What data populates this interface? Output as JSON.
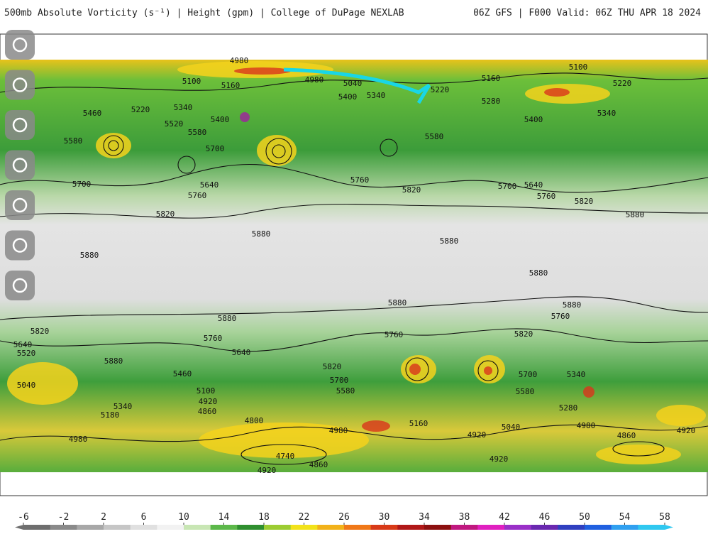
{
  "header": {
    "title": "500mb Absolute Vorticity (s⁻¹) | Height (gpm) | College of DuPage NEXLAB",
    "valid": "06Z GFS | F000 Valid: 06Z THU APR 18 2024"
  },
  "map": {
    "contour_labels": [
      4980,
      5100,
      5160,
      4980,
      5040,
      5400,
      5340,
      5220,
      5160,
      5100,
      5220,
      5280,
      5460,
      5220,
      5340,
      5400,
      5520,
      5580,
      5580,
      5700,
      5400,
      5340,
      5580,
      5640,
      5760,
      5700,
      5760,
      5820,
      5700,
      5640,
      5760,
      5820,
      5880,
      5820,
      5880,
      5880,
      5880,
      5880,
      5880,
      5880,
      5880,
      5760,
      5820,
      5760,
      5640,
      5760,
      5820,
      5880,
      5820,
      5700,
      5580,
      5700,
      5580,
      5640,
      5520,
      5460,
      5100,
      4920,
      4860,
      5340,
      5180,
      5040,
      4980,
      4800,
      4980,
      5160,
      4920,
      5040,
      4980,
      4860,
      4920,
      4740,
      4860,
      4920,
      4920,
      5280,
      5340
    ]
  },
  "colorbar": {
    "ticks": [
      -6,
      -2,
      2,
      6,
      10,
      14,
      18,
      22,
      26,
      30,
      34,
      38,
      42,
      46,
      50,
      54,
      58
    ]
  }
}
